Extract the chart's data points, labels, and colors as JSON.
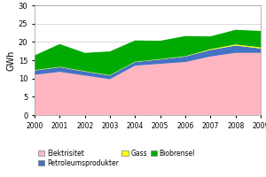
{
  "years": [
    2000,
    2001,
    2002,
    2003,
    2004,
    2005,
    2006,
    2007,
    2008,
    2009
  ],
  "elektrisitet": [
    11.0,
    11.8,
    10.8,
    9.8,
    13.5,
    14.0,
    14.5,
    16.0,
    17.0,
    17.0
  ],
  "petroleumsprodukter": [
    1.2,
    1.3,
    1.1,
    1.0,
    1.0,
    1.2,
    1.5,
    1.8,
    2.0,
    1.2
  ],
  "gass": [
    0.1,
    0.1,
    0.1,
    0.1,
    0.1,
    0.1,
    0.1,
    0.2,
    0.3,
    0.3
  ],
  "biobrensel": [
    4.0,
    6.2,
    5.0,
    6.5,
    5.8,
    5.0,
    5.5,
    3.5,
    4.0,
    4.5
  ],
  "elektrisitet_color": "#FFB6C1",
  "petroleumsprodukter_color": "#4472C4",
  "gass_color": "#FFFF00",
  "biobrensel_color": "#00AA00",
  "ylabel": "GWh",
  "ylim": [
    0,
    30
  ],
  "yticks": [
    0,
    5,
    10,
    15,
    20,
    25,
    30
  ],
  "background_color": "#FFFFFF",
  "plot_bg_color": "#FFFFFF",
  "grid_color": "#CCCCCC",
  "legend_labels": [
    "Elektrisitet",
    "Petroleumsprodukter",
    "Gass",
    "Biobrensel"
  ],
  "border_color": "#999999"
}
